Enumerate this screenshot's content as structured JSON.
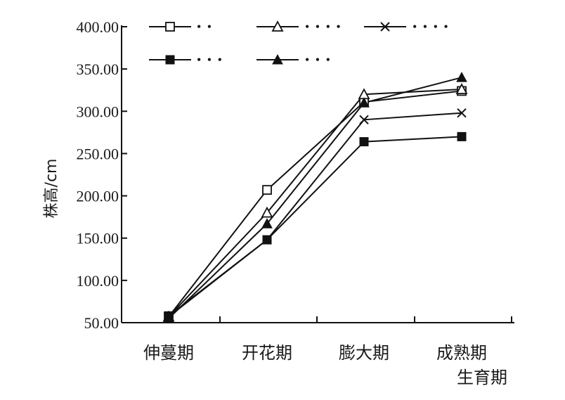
{
  "chart_data": {
    "type": "line",
    "title": "",
    "xlabel": "生育期",
    "ylabel": "株高/cm",
    "ylim": [
      50,
      400
    ],
    "yticks": [
      "50.00",
      "100.00",
      "150.00",
      "200.00",
      "250.00",
      "300.00",
      "350.00",
      "400.00"
    ],
    "yticks_values": [
      50,
      100,
      150,
      200,
      250,
      300,
      350,
      400
    ],
    "categories": [
      "伸蔓期",
      "开花期",
      "膨大期",
      "成熟期"
    ],
    "series": [
      {
        "name": "• •",
        "marker": "open-square",
        "values": [
          57,
          207,
          311,
          324
        ]
      },
      {
        "name": "• • • •",
        "marker": "open-triangle",
        "values": [
          57,
          180,
          320,
          326
        ]
      },
      {
        "name": "• • • •",
        "marker": "x",
        "values": [
          57,
          148,
          290,
          298
        ]
      },
      {
        "name": "• • •",
        "marker": "filled-square",
        "values": [
          58,
          148,
          264,
          270
        ]
      },
      {
        "name": "• • •",
        "marker": "filled-triangle",
        "values": [
          55,
          167,
          310,
          340
        ]
      }
    ],
    "legend_position": "top",
    "grid": false
  }
}
